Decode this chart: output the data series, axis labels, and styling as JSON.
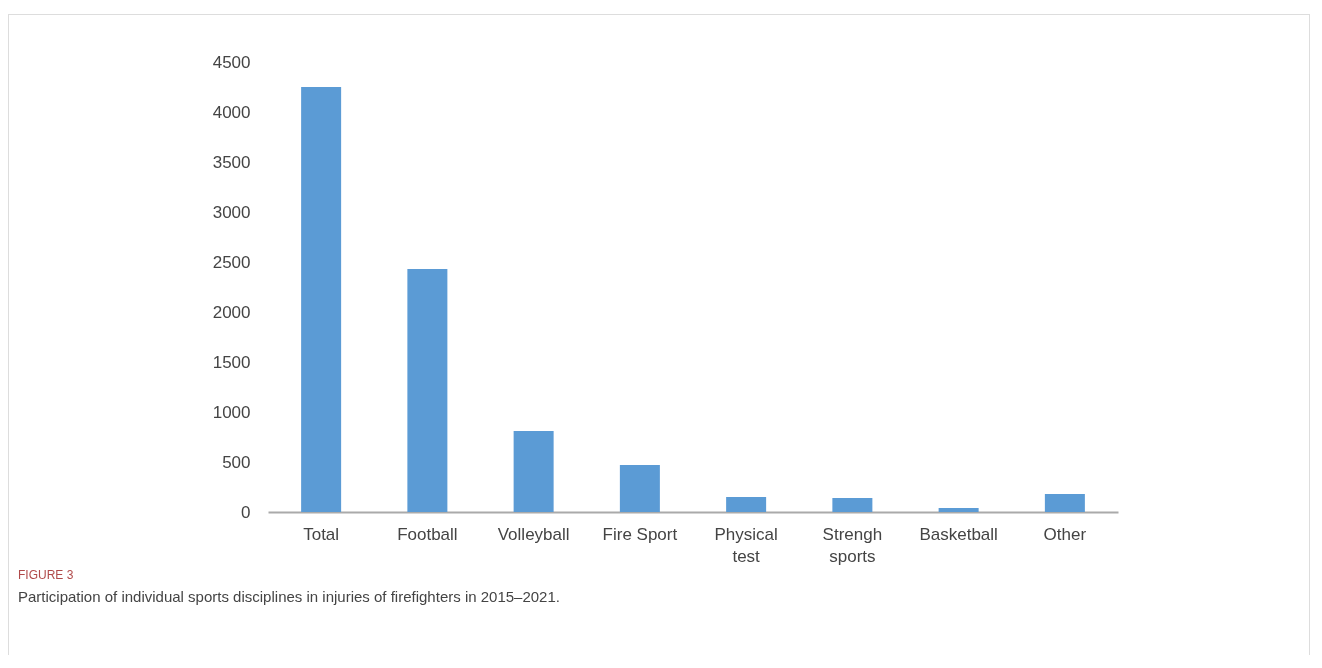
{
  "chart_data": {
    "type": "bar",
    "categories": [
      "Total",
      "Football",
      "Volleyball",
      "Fire Sport",
      "Physical test",
      "Strengh sports",
      "Basketball",
      "Other"
    ],
    "values": [
      4250,
      2430,
      810,
      470,
      150,
      140,
      40,
      180
    ],
    "color": "#5b9bd5",
    "ylim": [
      0,
      4500
    ],
    "yticks": [
      0,
      500,
      1000,
      1500,
      2000,
      2500,
      3000,
      3500,
      4000,
      4500
    ],
    "grid": false,
    "annotations": [
      "FIGURE 3",
      "Participation of individual sports disciplines in injuries of firefighters in 2015–2021."
    ]
  }
}
